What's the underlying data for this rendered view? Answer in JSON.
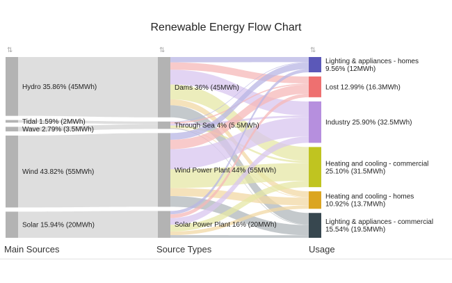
{
  "chart_data": {
    "type": "sankey",
    "title": "Renewable Energy Flow Chart",
    "columns": [
      "Main Sources",
      "Source Types",
      "Usage"
    ],
    "nodes": [
      {
        "id": "hydro",
        "column": 0,
        "label": "Hydro 35.86% (45MWh)",
        "value": 45,
        "color": "#b3b3b3"
      },
      {
        "id": "tidal",
        "column": 0,
        "label": "Tidal 1.59% (2MWh)",
        "value": 2,
        "color": "#b3b3b3"
      },
      {
        "id": "wave",
        "column": 0,
        "label": "Wave 2.79% (3.5MWh)",
        "value": 3.5,
        "color": "#b3b3b3"
      },
      {
        "id": "wind",
        "column": 0,
        "label": "Wind 43.82% (55MWh)",
        "value": 55,
        "color": "#b3b3b3"
      },
      {
        "id": "solar",
        "column": 0,
        "label": "Solar 15.94% (20MWh)",
        "value": 20,
        "color": "#b3b3b3"
      },
      {
        "id": "dams",
        "column": 1,
        "label": "Dams 36% (45MWh)",
        "value": 45,
        "color": "#b3b3b3"
      },
      {
        "id": "through_sea",
        "column": 1,
        "label": "Through Sea 4% (5.5MWh)",
        "value": 5.5,
        "color": "#b3b3b3"
      },
      {
        "id": "wind_plant",
        "column": 1,
        "label": "Wind Power Plant 44% (55MWh)",
        "value": 55,
        "color": "#b3b3b3"
      },
      {
        "id": "solar_plant",
        "column": 1,
        "label": "Solar Power Plant 16% (20MWh)",
        "value": 20,
        "color": "#b3b3b3"
      },
      {
        "id": "lighting_homes",
        "column": 2,
        "label": [
          "Lighting & appliances - homes",
          "9.56% (12MWh)"
        ],
        "value": 12,
        "color": "#5b58b8"
      },
      {
        "id": "lost",
        "column": 2,
        "label": [
          "Lost 12.99% (16.3MWh)"
        ],
        "value": 16.3,
        "color": "#ee7070"
      },
      {
        "id": "industry",
        "column": 2,
        "label": [
          "Industry 25.90% (32.5MWh)"
        ],
        "value": 32.5,
        "color": "#b68fde"
      },
      {
        "id": "heat_commercial",
        "column": 2,
        "label": [
          "Heating and cooling - commercial",
          "25.10% (31.5MWh)"
        ],
        "value": 31.5,
        "color": "#c0c420"
      },
      {
        "id": "heat_homes",
        "column": 2,
        "label": [
          "Heating and cooling - homes",
          "10.92% (13.7MWh)"
        ],
        "value": 13.7,
        "color": "#dba521"
      },
      {
        "id": "lighting_commercial",
        "column": 2,
        "label": [
          "Lighting & appliances - commercial",
          "15.54% (19.5MWh)"
        ],
        "value": 19.5,
        "color": "#37474f"
      }
    ],
    "links": [
      {
        "source": "hydro",
        "target": "dams",
        "value": 45
      },
      {
        "source": "tidal",
        "target": "through_sea",
        "value": 2
      },
      {
        "source": "wave",
        "target": "through_sea",
        "value": 3.5
      },
      {
        "source": "wind",
        "target": "wind_plant",
        "value": 55
      },
      {
        "source": "solar",
        "target": "solar_plant",
        "value": 20
      },
      {
        "source": "dams",
        "target": "lighting_homes",
        "value": 4
      },
      {
        "source": "dams",
        "target": "lost",
        "value": 5.5
      },
      {
        "source": "dams",
        "target": "industry",
        "value": 11
      },
      {
        "source": "dams",
        "target": "heat_commercial",
        "value": 11
      },
      {
        "source": "dams",
        "target": "heat_homes",
        "value": 4.5
      },
      {
        "source": "dams",
        "target": "lighting_commercial",
        "value": 9
      },
      {
        "source": "through_sea",
        "target": "lighting_homes",
        "value": 0.5
      },
      {
        "source": "through_sea",
        "target": "lost",
        "value": 1
      },
      {
        "source": "through_sea",
        "target": "industry",
        "value": 1.5
      },
      {
        "source": "through_sea",
        "target": "heat_commercial",
        "value": 1.5
      },
      {
        "source": "through_sea",
        "target": "heat_homes",
        "value": 0.5
      },
      {
        "source": "through_sea",
        "target": "lighting_commercial",
        "value": 0.5
      },
      {
        "source": "wind_plant",
        "target": "lighting_homes",
        "value": 5
      },
      {
        "source": "wind_plant",
        "target": "lost",
        "value": 7
      },
      {
        "source": "wind_plant",
        "target": "industry",
        "value": 15
      },
      {
        "source": "wind_plant",
        "target": "heat_commercial",
        "value": 14
      },
      {
        "source": "wind_plant",
        "target": "heat_homes",
        "value": 6
      },
      {
        "source": "wind_plant",
        "target": "lighting_commercial",
        "value": 8
      },
      {
        "source": "solar_plant",
        "target": "lighting_homes",
        "value": 2.5
      },
      {
        "source": "solar_plant",
        "target": "lost",
        "value": 2.8
      },
      {
        "source": "solar_plant",
        "target": "industry",
        "value": 5
      },
      {
        "source": "solar_plant",
        "target": "heat_commercial",
        "value": 5
      },
      {
        "source": "solar_plant",
        "target": "heat_homes",
        "value": 2.7
      },
      {
        "source": "solar_plant",
        "target": "lighting_commercial",
        "value": 2
      }
    ],
    "link_colors": {
      "lighting_homes": "#b8b6e4",
      "lost": "#f6b8b8",
      "industry": "#d8c6ef",
      "heat_commercial": "#e6e7a6",
      "heat_homes": "#f1d8a4",
      "lighting_commercial": "#b0b7bb",
      "default": "#d3d3d3"
    }
  }
}
